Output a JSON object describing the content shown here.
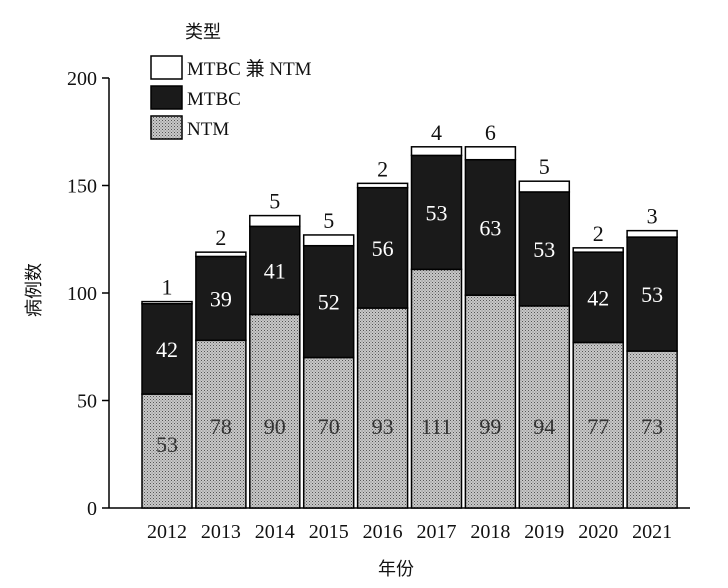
{
  "chart_data": {
    "type": "bar",
    "stacked": true,
    "categories": [
      "2012",
      "2013",
      "2014",
      "2015",
      "2016",
      "2017",
      "2018",
      "2019",
      "2020",
      "2021"
    ],
    "series": [
      {
        "name": "NTM",
        "values": [
          53,
          78,
          90,
          70,
          93,
          111,
          99,
          94,
          77,
          73
        ],
        "fill": "pattern-gray-dots"
      },
      {
        "name": "MTBC",
        "values": [
          42,
          39,
          41,
          52,
          56,
          53,
          63,
          53,
          42,
          53
        ],
        "fill": "#1a1a1a"
      },
      {
        "name": "MTBC 兼 NTM",
        "values": [
          1,
          2,
          5,
          5,
          2,
          4,
          6,
          5,
          2,
          3
        ],
        "fill": "#ffffff"
      }
    ],
    "legend_title": "类型",
    "xlabel": "年份",
    "ylabel": "病例数",
    "ylim": [
      0,
      200
    ],
    "yticks": [
      0,
      50,
      100,
      150,
      200
    ],
    "grid": false,
    "legend_position": "top-left"
  }
}
